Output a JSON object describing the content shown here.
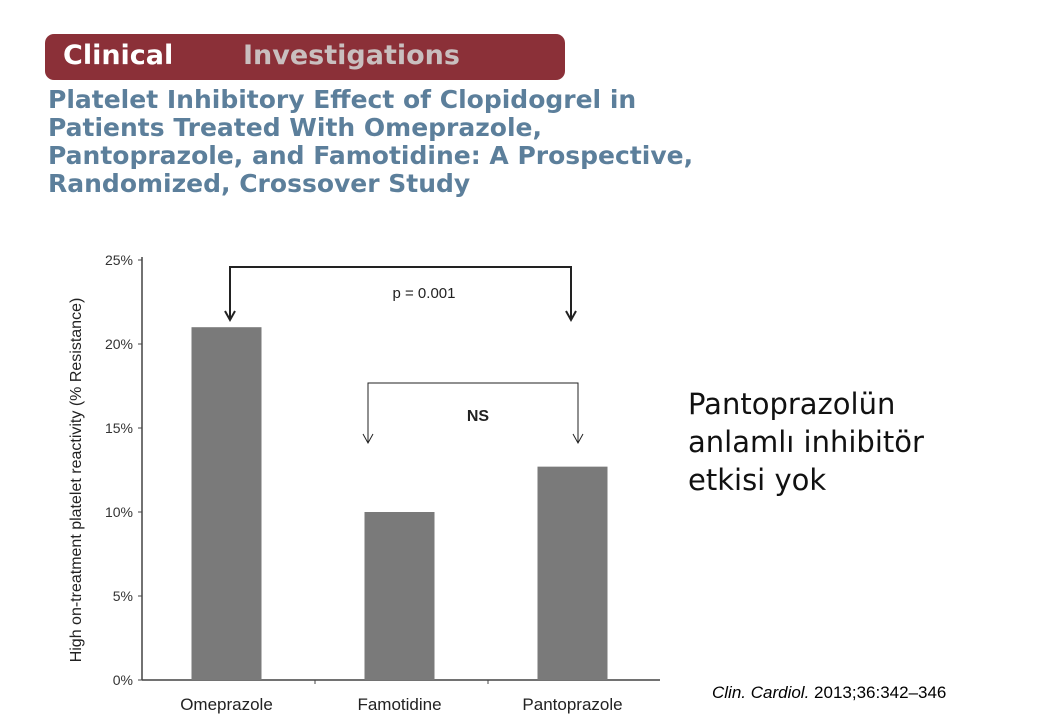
{
  "banner": {
    "word1": "Clinical",
    "word2": "Investigations"
  },
  "title_lines": [
    "Platelet Inhibitory Effect of Clopidogrel in",
    "Patients Treated With Omeprazole,",
    "Pantoprazole, and Famotidine: A Prospective,",
    "Randomized, Crossover Study"
  ],
  "note_lines": [
    "Pantoprazolün",
    "anlamlı inhibitör",
    "etkisi yok"
  ],
  "citation": {
    "journal": "Clin. Cardiol.",
    "ref": " 2013;36:342–346"
  },
  "chart_data": {
    "type": "bar",
    "title": "",
    "xlabel": "",
    "ylabel": "High on-treatment platelet reactivity (% Resistance)",
    "categories": [
      "Omeprazole",
      "Famotidine",
      "Pantoprazole"
    ],
    "values": [
      21,
      10,
      12.7
    ],
    "ylim": [
      0,
      25
    ],
    "yticks": [
      0,
      5,
      10,
      15,
      20,
      25
    ],
    "ytick_labels": [
      "0%",
      "5%",
      "10%",
      "15%",
      "20%",
      "25%"
    ],
    "bar_color": "#7a7a7a",
    "grid": false,
    "annotations": [
      {
        "text": "p = 0.001",
        "from": "Omeprazole",
        "to": "Pantoprazole"
      },
      {
        "text": "NS",
        "from": "Famotidine",
        "to": "Pantoprazole"
      }
    ]
  }
}
